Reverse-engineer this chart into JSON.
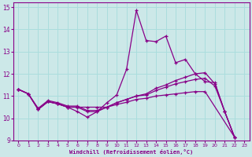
{
  "xlabel": "Windchill (Refroidissement éolien,°C)",
  "bg_color": "#cce8e8",
  "line_color": "#880088",
  "grid_color": "#aadddd",
  "xlim": [
    -0.5,
    23.5
  ],
  "ylim": [
    9,
    15.2
  ],
  "xticks": [
    0,
    1,
    2,
    3,
    4,
    5,
    6,
    7,
    8,
    9,
    10,
    11,
    12,
    13,
    14,
    15,
    16,
    17,
    18,
    19,
    20,
    21,
    22,
    23
  ],
  "yticks": [
    9,
    10,
    11,
    12,
    13,
    14,
    15
  ],
  "series": [
    {
      "x": [
        0,
        1,
        2,
        3,
        4,
        5,
        6,
        7,
        8,
        9,
        10,
        11,
        12,
        13,
        14,
        15,
        16,
        17,
        18,
        19,
        20,
        21,
        22
      ],
      "y": [
        11.3,
        11.1,
        10.4,
        10.75,
        10.65,
        10.5,
        10.3,
        10.05,
        10.3,
        10.7,
        11.05,
        12.2,
        14.85,
        13.5,
        13.45,
        13.7,
        12.5,
        12.65,
        12.0,
        11.65,
        11.6,
        10.3,
        9.15
      ]
    },
    {
      "x": [
        0,
        1,
        2,
        3,
        4,
        5,
        6,
        7,
        8,
        9,
        10,
        11,
        12,
        13,
        14,
        15,
        16,
        17,
        18,
        19,
        20,
        21,
        22
      ],
      "y": [
        11.3,
        11.1,
        10.4,
        10.75,
        10.65,
        10.5,
        10.5,
        10.5,
        10.5,
        10.5,
        10.7,
        10.85,
        11.0,
        11.1,
        11.35,
        11.5,
        11.7,
        11.85,
        12.0,
        12.05,
        11.55,
        10.3,
        9.15
      ]
    },
    {
      "x": [
        0,
        1,
        2,
        3,
        4,
        5,
        6,
        7,
        8,
        9,
        10,
        11,
        12,
        13,
        14,
        15,
        16,
        17,
        18,
        19,
        20,
        21,
        22
      ],
      "y": [
        11.3,
        11.1,
        10.4,
        10.75,
        10.65,
        10.5,
        10.5,
        10.3,
        10.3,
        10.5,
        10.7,
        10.85,
        11.0,
        11.05,
        11.25,
        11.4,
        11.55,
        11.65,
        11.75,
        11.8,
        11.45,
        10.3,
        9.15
      ]
    },
    {
      "x": [
        0,
        1,
        2,
        3,
        4,
        5,
        6,
        7,
        8,
        9,
        10,
        11,
        12,
        13,
        14,
        15,
        16,
        17,
        18,
        19,
        22
      ],
      "y": [
        11.3,
        11.1,
        10.45,
        10.8,
        10.7,
        10.55,
        10.55,
        10.35,
        10.35,
        10.5,
        10.62,
        10.72,
        10.85,
        10.9,
        11.0,
        11.05,
        11.1,
        11.15,
        11.2,
        11.2,
        9.15
      ]
    }
  ]
}
